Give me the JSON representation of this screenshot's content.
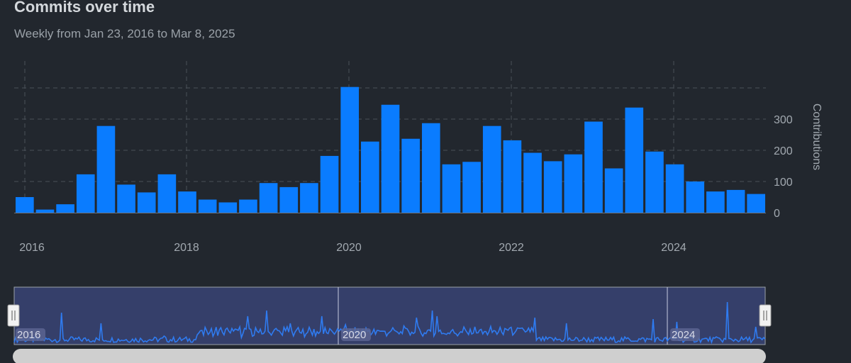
{
  "header": {
    "title": "Commits over time",
    "subtitle": "Weekly from Jan 23, 2016 to Mar 8, 2025"
  },
  "colors": {
    "background": "#22272e",
    "bar": "#0a7cff",
    "grid": "#4a5058",
    "navigator_fill": "#353f6a",
    "navigator_line": "#2f7bf0"
  },
  "chart_data": {
    "type": "bar",
    "ylabel": "Contributions",
    "ylim": [
      0,
      400
    ],
    "yticks": [
      0,
      100,
      200,
      300
    ],
    "xticks": [
      "2016",
      "2018",
      "2020",
      "2022",
      "2024"
    ],
    "grid": true,
    "values": [
      50,
      10,
      27,
      123,
      278,
      90,
      65,
      123,
      68,
      42,
      33,
      42,
      95,
      82,
      95,
      182,
      403,
      228,
      346,
      237,
      287,
      155,
      163,
      278,
      232,
      192,
      165,
      187,
      292,
      142,
      337,
      196,
      155,
      100,
      68,
      73,
      60
    ]
  },
  "navigator": {
    "labels": [
      "2016",
      "2020",
      "2024"
    ]
  }
}
